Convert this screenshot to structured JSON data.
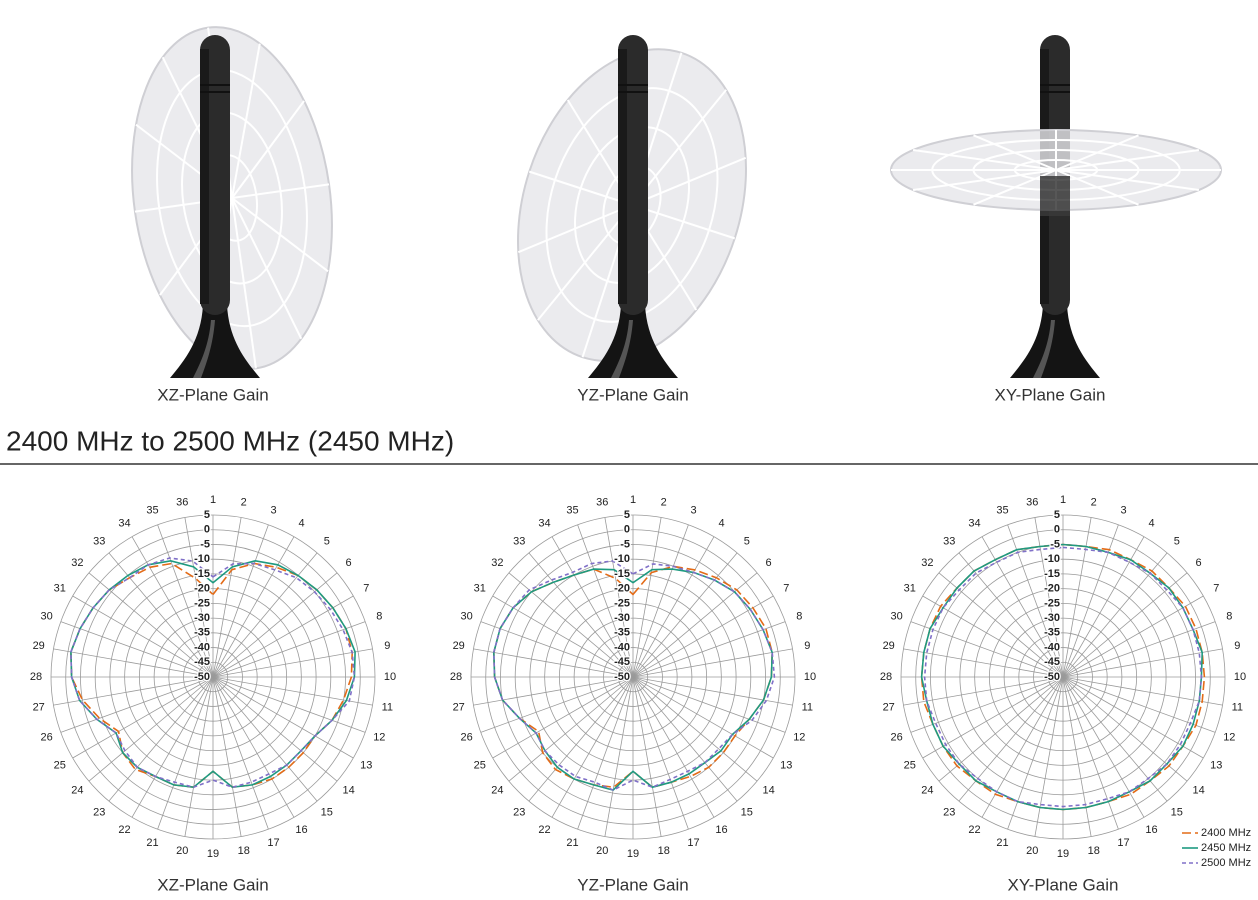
{
  "images": [
    {
      "caption": "XZ-Plane Gain"
    },
    {
      "caption": "YZ-Plane Gain"
    },
    {
      "caption": "XY-Plane Gain"
    }
  ],
  "section_title": "2400 MHz to 2500 MHz (2450 MHz)",
  "chart_data": [
    {
      "type": "polar",
      "title": "XZ-Plane Gain",
      "categories": [
        "1",
        "2",
        "3",
        "4",
        "5",
        "6",
        "7",
        "8",
        "9",
        "10",
        "11",
        "12",
        "13",
        "14",
        "15",
        "16",
        "17",
        "18",
        "19",
        "20",
        "21",
        "22",
        "23",
        "24",
        "25",
        "26",
        "27",
        "28",
        "29",
        "30",
        "31",
        "32",
        "33",
        "34",
        "35",
        "36"
      ],
      "rlim": [
        -50,
        5
      ],
      "rticks": [
        5,
        0,
        -5,
        -10,
        -15,
        -20,
        -25,
        -30,
        -35,
        -40,
        -45,
        -50
      ],
      "grid": true,
      "series": [
        {
          "name": "2400 MHz",
          "color": "#e36b17",
          "linestyle": "dashed",
          "values": [
            -22,
            -13,
            -9,
            -7,
            -5,
            -4,
            -3,
            -2,
            -2,
            -3,
            -5,
            -7,
            -10,
            -10,
            -10,
            -10,
            -11,
            -12,
            -18,
            -12,
            -11,
            -11,
            -9,
            -10,
            -13,
            -9,
            -5,
            -2,
            -1,
            -2,
            -3,
            -4,
            -6,
            -7,
            -9,
            -16
          ]
        },
        {
          "name": "2450 MHz",
          "color": "#1e9a80",
          "linestyle": "solid",
          "values": [
            -18,
            -12,
            -8,
            -6,
            -5,
            -4,
            -3,
            -2,
            -1,
            -2,
            -4,
            -7,
            -10,
            -11,
            -11,
            -11,
            -11,
            -12,
            -18,
            -12,
            -11,
            -11,
            -10,
            -10,
            -12,
            -8,
            -4,
            -2,
            -1,
            -2,
            -3,
            -4,
            -5,
            -6,
            -8,
            -12
          ]
        },
        {
          "name": "2500 MHz",
          "color": "#8070c8",
          "linestyle": "dotted",
          "values": [
            -16,
            -11,
            -9,
            -8,
            -6,
            -5,
            -4,
            -3,
            -2,
            -2,
            -3,
            -7,
            -10,
            -11,
            -11,
            -12,
            -12,
            -12,
            -15,
            -12,
            -12,
            -11,
            -10,
            -11,
            -12,
            -8,
            -4,
            -2,
            -1,
            -2,
            -3,
            -4,
            -6,
            -6,
            -7,
            -10
          ]
        }
      ]
    },
    {
      "type": "polar",
      "title": "YZ-Plane Gain",
      "categories": [
        "1",
        "2",
        "3",
        "4",
        "5",
        "6",
        "7",
        "8",
        "9",
        "10",
        "11",
        "12",
        "13",
        "14",
        "15",
        "16",
        "17",
        "18",
        "19",
        "20",
        "21",
        "22",
        "23",
        "24",
        "25",
        "26",
        "27",
        "28",
        "29",
        "30",
        "31",
        "32",
        "33",
        "34",
        "35",
        "36"
      ],
      "rlim": [
        -50,
        5
      ],
      "rticks": [
        5,
        0,
        -5,
        -10,
        -15,
        -20,
        -25,
        -30,
        -35,
        -40,
        -45,
        -50
      ],
      "grid": true,
      "series": [
        {
          "name": "2400 MHz",
          "color": "#e36b17",
          "linestyle": "dashed",
          "values": [
            -22,
            -14,
            -10,
            -8,
            -6,
            -4,
            -3,
            -2,
            -2,
            -3,
            -5,
            -8,
            -10,
            -10,
            -10,
            -11,
            -12,
            -12,
            -18,
            -12,
            -11,
            -10,
            -9,
            -10,
            -13,
            -9,
            -5,
            -3,
            -2,
            -2,
            -3,
            -5,
            -8,
            -10,
            -11,
            -16
          ]
        },
        {
          "name": "2450 MHz",
          "color": "#1e9a80",
          "linestyle": "solid",
          "values": [
            -18,
            -13,
            -11,
            -9,
            -7,
            -5,
            -4,
            -3,
            -2,
            -3,
            -5,
            -8,
            -11,
            -11,
            -12,
            -12,
            -12,
            -12,
            -18,
            -11,
            -11,
            -10,
            -10,
            -11,
            -12,
            -9,
            -5,
            -3,
            -2,
            -2,
            -3,
            -5,
            -8,
            -10,
            -11,
            -13
          ]
        },
        {
          "name": "2500 MHz",
          "color": "#8070c8",
          "linestyle": "dotted",
          "values": [
            -15,
            -11,
            -10,
            -9,
            -7,
            -5,
            -4,
            -3,
            -2,
            -2,
            -4,
            -7,
            -11,
            -12,
            -12,
            -13,
            -13,
            -12,
            -15,
            -11,
            -12,
            -11,
            -11,
            -11,
            -12,
            -9,
            -5,
            -3,
            -2,
            -2,
            -3,
            -4,
            -7,
            -9,
            -9,
            -10
          ]
        }
      ]
    },
    {
      "type": "polar",
      "title": "XY-Plane Gain",
      "categories": [
        "1",
        "2",
        "3",
        "4",
        "5",
        "6",
        "7",
        "8",
        "9",
        "10",
        "11",
        "12",
        "13",
        "14",
        "15",
        "16",
        "17",
        "18",
        "19",
        "20",
        "21",
        "22",
        "23",
        "24",
        "25",
        "26",
        "27",
        "28",
        "29",
        "30",
        "31",
        "32",
        "33",
        "34",
        "35",
        "36"
      ],
      "rlim": [
        -50,
        5
      ],
      "rticks": [
        5,
        0,
        -5,
        -10,
        -15,
        -20,
        -25,
        -30,
        -35,
        -40,
        -45,
        -50
      ],
      "grid": true,
      "legend": "lower right",
      "series": [
        {
          "name": "2400 MHz",
          "color": "#e36b17",
          "linestyle": "dashed",
          "values": [
            -5,
            -5,
            -4,
            -4,
            -3,
            -3,
            -2,
            -2,
            -2,
            -2,
            -2,
            -2,
            -3,
            -3,
            -4,
            -4,
            -5,
            -5,
            -5,
            -5,
            -5,
            -4,
            -4,
            -3,
            -3,
            -3,
            -2,
            -2,
            -2,
            -2,
            -2,
            -3,
            -3,
            -4,
            -4,
            -5
          ]
        },
        {
          "name": "2450 MHz",
          "color": "#1e9a80",
          "linestyle": "solid",
          "values": [
            -5,
            -5,
            -5,
            -4,
            -4,
            -3,
            -3,
            -3,
            -2,
            -3,
            -3,
            -3,
            -3,
            -4,
            -4,
            -5,
            -5,
            -5,
            -5,
            -5,
            -5,
            -5,
            -4,
            -4,
            -3,
            -3,
            -3,
            -2,
            -2,
            -2,
            -3,
            -3,
            -3,
            -4,
            -4,
            -5
          ]
        },
        {
          "name": "2500 MHz",
          "color": "#8070c8",
          "linestyle": "dotted",
          "values": [
            -6,
            -6,
            -5,
            -5,
            -4,
            -4,
            -3,
            -3,
            -3,
            -3,
            -3,
            -4,
            -4,
            -4,
            -5,
            -5,
            -6,
            -6,
            -6,
            -6,
            -5,
            -5,
            -5,
            -4,
            -4,
            -4,
            -3,
            -3,
            -3,
            -3,
            -3,
            -4,
            -4,
            -5,
            -5,
            -6
          ]
        }
      ]
    }
  ]
}
